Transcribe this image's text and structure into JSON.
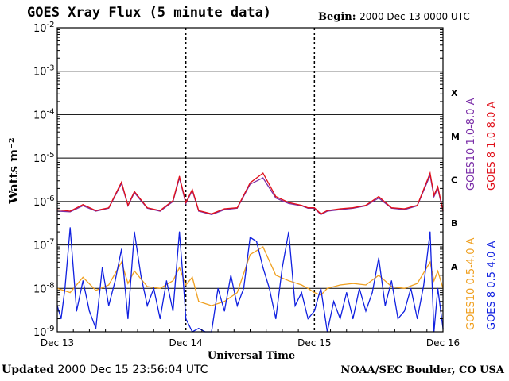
{
  "header": {
    "title": "GOES Xray Flux (5 minute data)",
    "begin_label": "Begin:",
    "begin_value": "2000 Dec 13 0000 UTC"
  },
  "footer": {
    "updated_label": "Updated",
    "updated_value": "2000 Dec 15 23:56:04 UTC",
    "credit": "NOAA/SEC Boulder, CO USA"
  },
  "chart_data": {
    "type": "line",
    "title": "GOES Xray Flux (5 minute data)",
    "xlabel": "Universal Time",
    "ylabel": "Watts m⁻²",
    "y_scale": "log",
    "ylim": [
      1e-09,
      0.01
    ],
    "y_ticks": [
      {
        "value": 1e-09,
        "base": "10",
        "exp": "-9"
      },
      {
        "value": 1e-08,
        "base": "10",
        "exp": "-8"
      },
      {
        "value": 1e-07,
        "base": "10",
        "exp": "-7"
      },
      {
        "value": 1e-06,
        "base": "10",
        "exp": "-6"
      },
      {
        "value": 1e-05,
        "base": "10",
        "exp": "-5"
      },
      {
        "value": 0.0001,
        "base": "10",
        "exp": "-4"
      },
      {
        "value": 0.001,
        "base": "10",
        "exp": "-3"
      },
      {
        "value": 0.01,
        "base": "10",
        "exp": "-2"
      }
    ],
    "x_ticks": [
      "Dec 13",
      "Dec 14",
      "Dec 15",
      "Dec 16"
    ],
    "flare_classes": [
      {
        "label": "A",
        "value": 1e-08
      },
      {
        "label": "B",
        "value": 1e-07
      },
      {
        "label": "C",
        "value": 1e-06
      },
      {
        "label": "M",
        "value": 1e-05
      },
      {
        "label": "X",
        "value": 0.0001
      }
    ],
    "grid": true,
    "legend": [
      {
        "text": "GOES10 1.0-8.0 A",
        "color": "#7b2fa8"
      },
      {
        "text": "GOES 8 1.0-8.0 A",
        "color": "#e0101a"
      },
      {
        "text": "GOES10 0.5-4.0 A",
        "color": "#f0a020"
      },
      {
        "text": "GOES 8 0.5-4.0 A",
        "color": "#1020e0"
      }
    ],
    "series": [
      {
        "name": "GOES10 1.0-8.0 A",
        "color": "#7b2fa8",
        "x": [
          0.0,
          0.1,
          0.2,
          0.3,
          0.4,
          0.5,
          0.55,
          0.6,
          0.7,
          0.8,
          0.9,
          0.95,
          1.0,
          1.05,
          1.1,
          1.2,
          1.3,
          1.4,
          1.5,
          1.6,
          1.7,
          1.8,
          1.9,
          1.95,
          2.0,
          2.05,
          2.1,
          2.2,
          2.3,
          2.4,
          2.5,
          2.6,
          2.7,
          2.8,
          2.9,
          2.93,
          2.96,
          3.0
        ],
        "values": [
          6e-07,
          5.8e-07,
          8e-07,
          6e-07,
          7e-07,
          2.6e-06,
          8e-07,
          1.6e-06,
          7e-07,
          6e-07,
          1e-06,
          3.5e-06,
          9e-07,
          1.8e-06,
          6e-07,
          5e-07,
          6.5e-07,
          7e-07,
          2.5e-06,
          3.5e-06,
          1.2e-06,
          9e-07,
          8e-07,
          7e-07,
          7e-07,
          5e-07,
          6e-07,
          6.5e-07,
          7e-07,
          8e-07,
          1.2e-06,
          7e-07,
          6.5e-07,
          8e-07,
          4e-06,
          1.3e-06,
          2e-06,
          6e-07
        ]
      },
      {
        "name": "GOES 8 1.0-8.0 A",
        "color": "#e0101a",
        "x": [
          0.0,
          0.1,
          0.2,
          0.3,
          0.4,
          0.5,
          0.55,
          0.6,
          0.7,
          0.8,
          0.9,
          0.95,
          1.0,
          1.05,
          1.1,
          1.2,
          1.3,
          1.4,
          1.5,
          1.6,
          1.7,
          1.8,
          1.9,
          1.95,
          2.0,
          2.05,
          2.1,
          2.2,
          2.3,
          2.4,
          2.5,
          2.6,
          2.7,
          2.8,
          2.9,
          2.93,
          2.96,
          3.0
        ],
        "values": [
          6.5e-07,
          6e-07,
          8.5e-07,
          6.2e-07,
          7.2e-07,
          2.8e-06,
          8.2e-07,
          1.7e-06,
          7.2e-07,
          6.2e-07,
          1.05e-06,
          3.8e-06,
          9.5e-07,
          1.9e-06,
          6.2e-07,
          5.2e-07,
          6.8e-07,
          7.2e-07,
          2.7e-06,
          4.5e-06,
          1.3e-06,
          9.5e-07,
          8.2e-07,
          7.2e-07,
          7.2e-07,
          5.2e-07,
          6.2e-07,
          6.8e-07,
          7.2e-07,
          8.2e-07,
          1.3e-06,
          7.2e-07,
          6.8e-07,
          8.2e-07,
          4.5e-06,
          1.4e-06,
          2.2e-06,
          6.2e-07
        ]
      },
      {
        "name": "GOES10 0.5-4.0 A",
        "color": "#f0a020",
        "x": [
          0.0,
          0.1,
          0.2,
          0.3,
          0.4,
          0.5,
          0.55,
          0.6,
          0.7,
          0.8,
          0.9,
          0.95,
          1.0,
          1.05,
          1.1,
          1.2,
          1.3,
          1.4,
          1.5,
          1.6,
          1.7,
          1.8,
          1.9,
          1.95,
          2.0,
          2.05,
          2.1,
          2.2,
          2.3,
          2.4,
          2.5,
          2.6,
          2.7,
          2.8,
          2.9,
          2.93,
          2.96,
          3.0
        ],
        "values": [
          1e-08,
          8e-09,
          1.8e-08,
          9e-09,
          1.2e-08,
          4e-08,
          1.3e-08,
          2.5e-08,
          1.1e-08,
          1e-08,
          1.5e-08,
          3e-08,
          1.2e-08,
          1.8e-08,
          5e-09,
          4e-09,
          5e-09,
          8e-09,
          6e-08,
          9e-08,
          2e-08,
          1.5e-08,
          1.2e-08,
          1e-08,
          8e-09,
          7e-09,
          1e-08,
          1.2e-08,
          1.3e-08,
          1.2e-08,
          2e-08,
          1.1e-08,
          1e-08,
          1.3e-08,
          4e-08,
          1.5e-08,
          2.5e-08,
          1e-08
        ]
      },
      {
        "name": "GOES 8 0.5-4.0 A",
        "color": "#1020e0",
        "x": [
          0.0,
          0.03,
          0.06,
          0.1,
          0.15,
          0.2,
          0.25,
          0.3,
          0.35,
          0.4,
          0.45,
          0.5,
          0.55,
          0.6,
          0.65,
          0.7,
          0.75,
          0.8,
          0.85,
          0.9,
          0.95,
          0.98,
          1.0,
          1.05,
          1.1,
          1.15,
          1.2,
          1.25,
          1.3,
          1.35,
          1.4,
          1.45,
          1.5,
          1.55,
          1.6,
          1.65,
          1.7,
          1.75,
          1.8,
          1.85,
          1.9,
          1.95,
          2.0,
          2.05,
          2.1,
          2.15,
          2.2,
          2.25,
          2.3,
          2.35,
          2.4,
          2.45,
          2.5,
          2.55,
          2.6,
          2.65,
          2.7,
          2.75,
          2.8,
          2.85,
          2.9,
          2.93,
          2.96,
          3.0
        ],
        "values": [
          4e-09,
          2e-09,
          1e-08,
          2.5e-07,
          3e-09,
          1.5e-08,
          3e-09,
          1.2e-09,
          3e-08,
          4e-09,
          1.5e-08,
          8e-08,
          2e-09,
          2e-07,
          2e-08,
          4e-09,
          1e-08,
          2e-09,
          1.5e-08,
          3e-09,
          2e-07,
          1.5e-08,
          2e-09,
          1e-09,
          1.2e-09,
          1e-09,
          1e-09,
          1e-08,
          3e-09,
          2e-08,
          4e-09,
          1e-08,
          1.5e-07,
          1.2e-07,
          3e-08,
          1e-08,
          2e-09,
          3e-08,
          2e-07,
          4e-09,
          8e-09,
          2e-09,
          3e-09,
          1e-08,
          1e-09,
          5e-09,
          2e-09,
          8e-09,
          2e-09,
          1e-08,
          3e-09,
          8e-09,
          5e-08,
          4e-09,
          1.5e-08,
          2e-09,
          3e-09,
          1e-08,
          2e-09,
          1.2e-08,
          2e-07,
          1e-09,
          1e-08,
          1.2e-09
        ]
      }
    ]
  }
}
